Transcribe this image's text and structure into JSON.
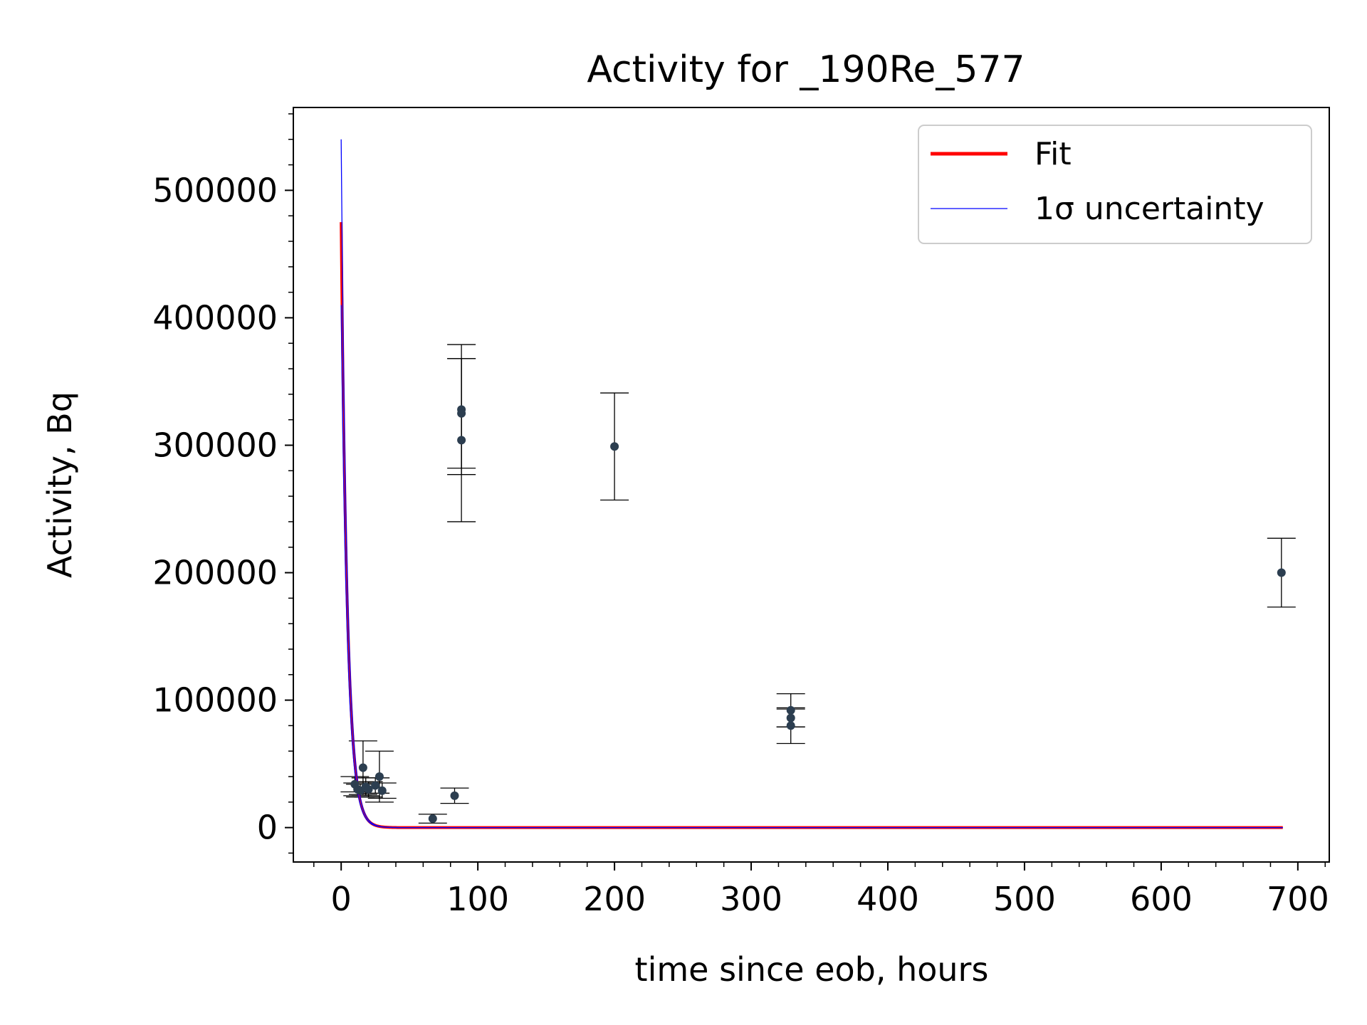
{
  "chart_data": {
    "type": "scatter",
    "title": "Activity for _190Re_577",
    "xlabel": "time since eob, hours",
    "ylabel": "Activity, Bq",
    "xlim": [
      -35,
      723
    ],
    "ylim": [
      -27000,
      565000
    ],
    "xticks": [
      0,
      100,
      200,
      300,
      400,
      500,
      600,
      700
    ],
    "yticks": [
      0,
      100000,
      200000,
      300000,
      400000,
      500000
    ],
    "grid": false,
    "legend_position": "top-right",
    "legend": [
      {
        "label": "Fit",
        "color": "#ff0000"
      },
      {
        "label": "1σ uncertainty",
        "color": "#0000ff"
      }
    ],
    "fit": {
      "name": "Fit",
      "color": "#ff0000",
      "A0": 475000,
      "half_life_hours": 3.1,
      "x_range": [
        0,
        690
      ]
    },
    "uncertainty": {
      "name": "1σ uncertainty",
      "color": "#0000ff",
      "upper_A0": 540000,
      "lower_A0": 410000
    },
    "points_color": "#2c3e50",
    "data_points": [
      {
        "x": 10,
        "y": 34000,
        "err": 6000
      },
      {
        "x": 12,
        "y": 30000,
        "err": 5000
      },
      {
        "x": 14,
        "y": 29000,
        "err": 5000
      },
      {
        "x": 16,
        "y": 47000,
        "err": 21000
      },
      {
        "x": 18,
        "y": 32000,
        "err": 7000
      },
      {
        "x": 20,
        "y": 30000,
        "err": 6000
      },
      {
        "x": 25,
        "y": 33000,
        "err": 6000
      },
      {
        "x": 28,
        "y": 40000,
        "err": 20000
      },
      {
        "x": 30,
        "y": 29000,
        "err": 6000
      },
      {
        "x": 67,
        "y": 7000,
        "err": 3500
      },
      {
        "x": 83,
        "y": 25000,
        "err": 6000
      },
      {
        "x": 88,
        "y": 328000,
        "err": 51000
      },
      {
        "x": 88,
        "y": 325000,
        "err": 43000
      },
      {
        "x": 88,
        "y": 304000,
        "err": 64000
      },
      {
        "x": 200,
        "y": 299000,
        "err": 42000
      },
      {
        "x": 329,
        "y": 92000,
        "err": 13000
      },
      {
        "x": 329,
        "y": 86000,
        "err": 7000
      },
      {
        "x": 329,
        "y": 80000,
        "err": 14000
      },
      {
        "x": 688,
        "y": 200000,
        "err": 27000
      }
    ]
  }
}
